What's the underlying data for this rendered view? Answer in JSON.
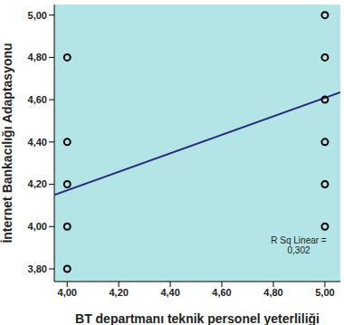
{
  "chart_data": {
    "type": "scatter",
    "x_label": "BT departmanı teknik personel yeterliliği",
    "y_label": "İnternet Bankacılığı Adaptasyonu",
    "x": [
      4,
      4,
      4,
      4,
      4,
      5,
      5,
      5,
      5,
      5,
      5
    ],
    "values": [
      4.8,
      4.4,
      4.2,
      4.0,
      3.8,
      5.0,
      4.8,
      4.6,
      4.4,
      4.2,
      4.0
    ],
    "color": "#000000",
    "marker": "hollow circle",
    "fit": {
      "x": [
        3.95,
        5.06
      ],
      "values": [
        4.15,
        4.635
      ],
      "color": "#2b2b80",
      "line_style": "solid"
    },
    "annotation": [
      "R Sq Linear =",
      "0,302"
    ],
    "xlim": [
      3.95,
      5.06
    ],
    "ylim": [
      3.74,
      5.05
    ],
    "xticks": [
      {
        "value": 4,
        "label": "4,00"
      },
      {
        "value": 4.2,
        "label": "4,20"
      },
      {
        "value": 4.4,
        "label": "4,40"
      },
      {
        "value": 4.6,
        "label": "4,60"
      },
      {
        "value": 4.8,
        "label": "4,80"
      },
      {
        "value": 5,
        "label": "5,00"
      }
    ],
    "yticks": [
      {
        "value": 3.8,
        "label": "3,80"
      },
      {
        "value": 4.0,
        "label": "4,00"
      },
      {
        "value": 4.2,
        "label": "4,20"
      },
      {
        "value": 4.4,
        "label": "4,40"
      },
      {
        "value": 4.6,
        "label": "4,60"
      },
      {
        "value": 4.8,
        "label": "4,80"
      },
      {
        "value": 5.0,
        "label": "5,00"
      }
    ],
    "grid": false
  }
}
